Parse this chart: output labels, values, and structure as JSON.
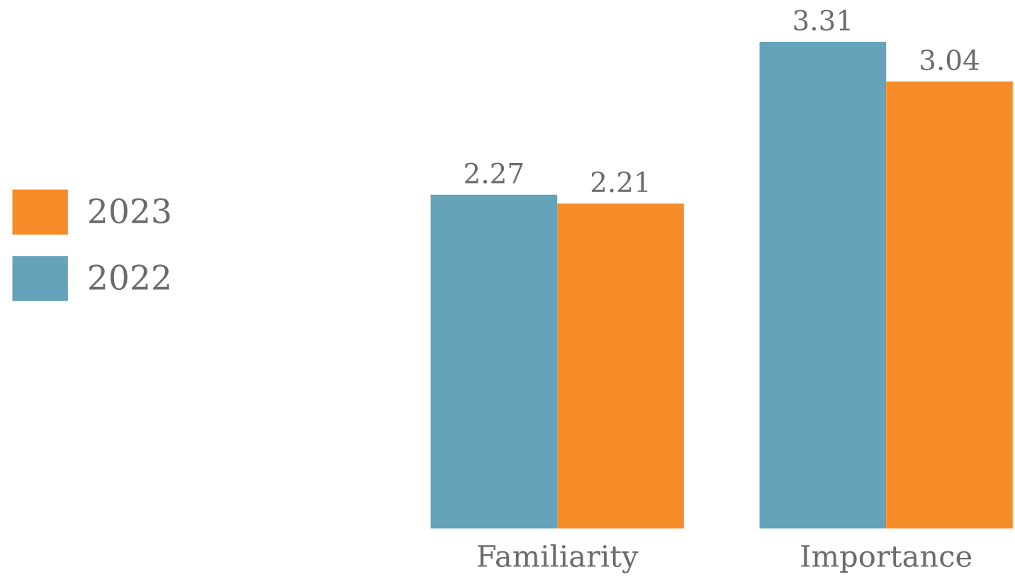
{
  "chart_data": {
    "type": "bar",
    "categories": [
      "Familiarity",
      "Importance"
    ],
    "series": [
      {
        "name": "2022",
        "color": "#65a3bb",
        "values": [
          2.27,
          3.31
        ]
      },
      {
        "name": "2023",
        "color": "#f68c28",
        "values": [
          2.21,
          3.04
        ]
      }
    ],
    "data_labels": true,
    "legend": "left",
    "grid": false
  }
}
